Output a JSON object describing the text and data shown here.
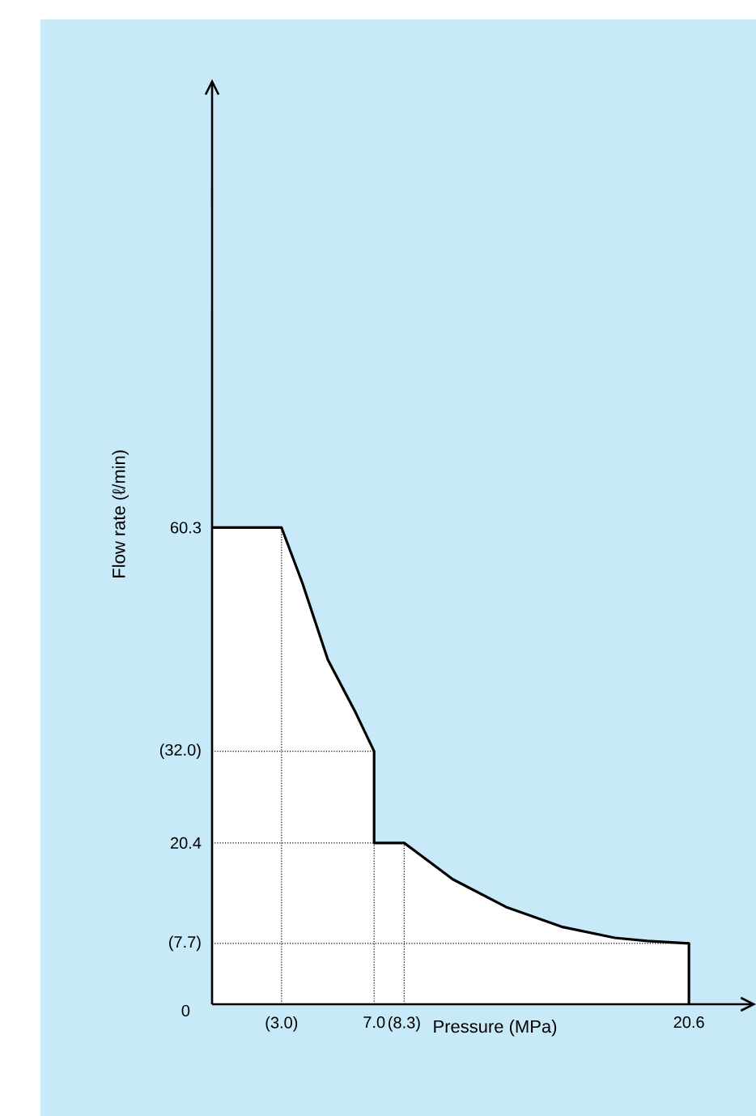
{
  "chart_data": {
    "type": "area",
    "xlabel": "Pressure (MPa)",
    "ylabel": "Flow rate (ℓ/min)",
    "xlim": [
      0,
      23.5
    ],
    "ylim": [
      0,
      117
    ],
    "xticks": [
      {
        "value": 3.0,
        "label": "(3.0)"
      },
      {
        "value": 7.0,
        "label": "7.0"
      },
      {
        "value": 8.3,
        "label": "(8.3)"
      },
      {
        "value": 20.6,
        "label": "20.6"
      }
    ],
    "yticks": [
      {
        "value": 0,
        "label": "0"
      },
      {
        "value": 7.7,
        "label": "(7.7)"
      },
      {
        "value": 20.4,
        "label": "20.4"
      },
      {
        "value": 32.0,
        "label": "(32.0)"
      },
      {
        "value": 60.3,
        "label": "60.3"
      }
    ],
    "series": [
      {
        "color": "#000000",
        "x": [
          0,
          3.0,
          3.9,
          5.0,
          6.2,
          7.0,
          7.0,
          8.3,
          10.4,
          12.7,
          15.1,
          17.4,
          18.8,
          20.6,
          20.6
        ],
        "values": [
          60.3,
          60.3,
          53.3,
          43.6,
          36.9,
          32.0,
          20.4,
          20.4,
          15.8,
          12.3,
          9.8,
          8.4,
          8.0,
          7.7,
          0
        ]
      }
    ],
    "ref_lines": [
      {
        "axis": "x",
        "value": 3.0,
        "line_style": "dotted",
        "color": "#000000"
      },
      {
        "axis": "x",
        "value": 7.0,
        "line_style": "dotted",
        "color": "#000000"
      },
      {
        "axis": "x",
        "value": 8.3,
        "line_style": "dotted",
        "color": "#000000"
      },
      {
        "axis": "y",
        "value": 32.0,
        "line_style": "dotted",
        "color": "#000000"
      },
      {
        "axis": "y",
        "value": 20.4,
        "line_style": "dotted",
        "color": "#000000"
      },
      {
        "axis": "y",
        "value": 7.7,
        "line_style": "dotted",
        "color": "#000000"
      }
    ],
    "marker": "none",
    "line_style": "solid"
  }
}
